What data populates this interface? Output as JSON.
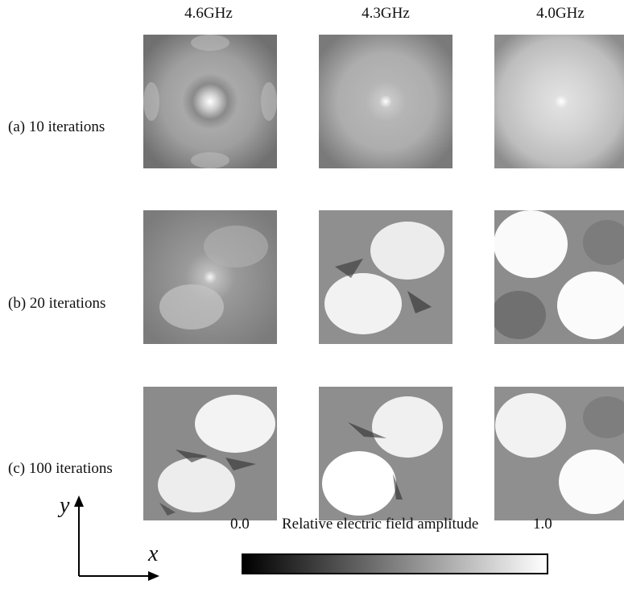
{
  "columns": [
    "4.6GHz",
    "4.3GHz",
    "4.0GHz"
  ],
  "rows": [
    "(a) 10 iterations",
    "(b) 20 iterations",
    "(c) 100 iterations"
  ],
  "axes": {
    "x": "x",
    "y": "y"
  },
  "colorbar": {
    "min": "0.0",
    "max": "1.0",
    "title": "Relative electric field amplitude",
    "colors": [
      "#000000",
      "#ffffff"
    ]
  }
}
